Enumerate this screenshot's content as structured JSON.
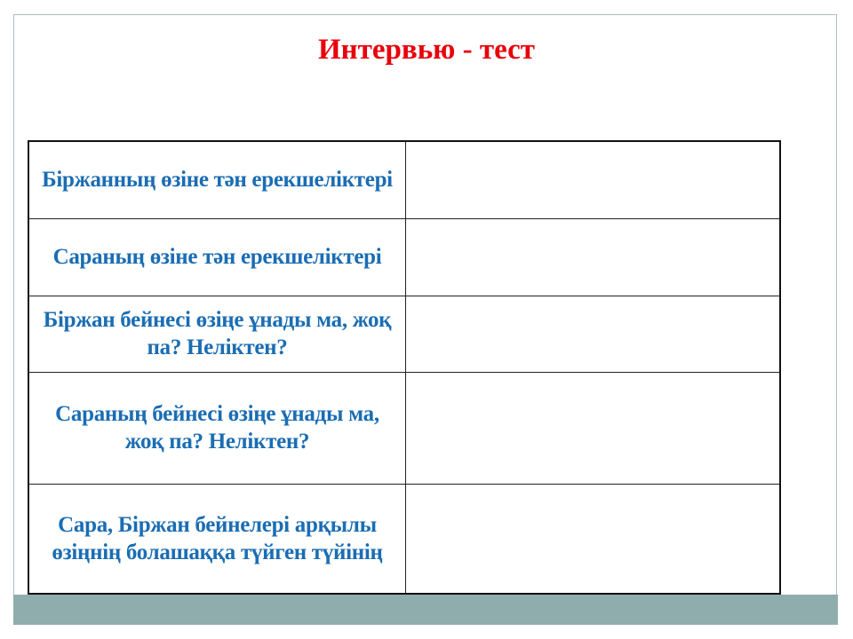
{
  "title": "Интервью - тест",
  "colors": {
    "title": "#e8000b",
    "question_text": "#1a6db3",
    "footer_bar": "#8fadad"
  },
  "rows": [
    {
      "question": "Біржанның өзіне тән ерекшеліктері",
      "answer": ""
    },
    {
      "question": "Сараның өзіне тән ерекшеліктері",
      "answer": ""
    },
    {
      "question": "Біржан бейнесі өзіңе ұнады ма, жоқ па? Неліктен?",
      "answer": ""
    },
    {
      "question": "Сараның бейнесі өзіңе ұнады ма, жоқ па? Неліктен?",
      "answer": ""
    },
    {
      "question": "Сара, Біржан бейнелері арқылы өзіңнің болашаққа түйген түйінің",
      "answer": ""
    }
  ]
}
